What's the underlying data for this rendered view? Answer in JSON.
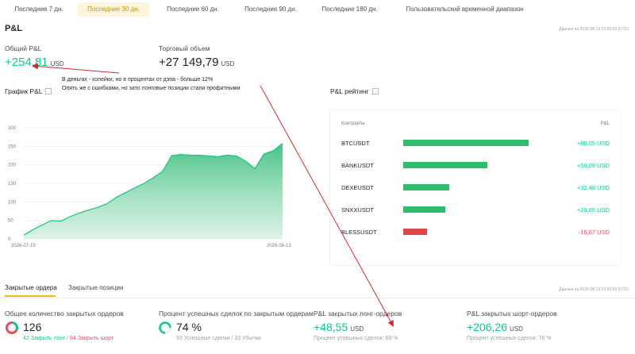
{
  "tabs": [
    {
      "label": "Последние 7 дн."
    },
    {
      "label": "Последние 30 дн."
    },
    {
      "label": "Последние 60 дн."
    },
    {
      "label": "Последние 90 дн."
    },
    {
      "label": "Последние 180 дн."
    },
    {
      "label": "Пользовательский временной диапазон"
    }
  ],
  "pnl": {
    "title": "P&L",
    "timestamp": "Данные на 2026-08-13 23:59:59 (UTC)",
    "total_label": "Общий P&L",
    "total_value": "+254,81",
    "total_unit": "USD",
    "volume_label": "Торговый объем",
    "volume_value": "+27 149,79",
    "volume_unit": "USD"
  },
  "annotation": {
    "line1": "В деньгах - копейки, но в процентах от дэпа - больше 12%",
    "line2": "Опять же с ошибками, но зато лонговые позиции стали профитными"
  },
  "chart_section": {
    "title": "График P&L",
    "chart_data": {
      "type": "area",
      "x_tick_labels": [
        "2026-07-15",
        "2026-08-13"
      ],
      "y_tick_labels": [
        "0",
        "50",
        "100",
        "150",
        "200",
        "250",
        "300"
      ],
      "ylim": [
        0,
        300
      ],
      "grid": true,
      "color": "#0ecb81",
      "values": [
        10,
        25,
        38,
        50,
        48,
        60,
        70,
        78,
        85,
        95,
        112,
        125,
        138,
        150,
        165,
        182,
        225,
        228,
        226,
        226,
        224,
        222,
        226,
        224,
        210,
        190,
        230,
        238,
        258
      ]
    }
  },
  "rating": {
    "title": "P&L рейтинг",
    "col_contract": "Контракты",
    "col_pnl": "P&L",
    "chart_data": {
      "type": "bar",
      "orientation": "horizontal",
      "categories": [
        "BTCUSDT",
        "BANKUSDT",
        "DEXEUSDT",
        "SNXXUSDT",
        "BLESSUSDT"
      ],
      "values": [
        88.05,
        59.09,
        32.48,
        29.66,
        -16.67
      ],
      "labels": [
        "+88,05 USD",
        "+59,09 USD",
        "+32,48 USD",
        "+29,66 USD",
        "-16,67 USD"
      ],
      "max": 88.05
    },
    "colors": {
      "positive": "#2ebd6b",
      "negative": "#e04848"
    }
  },
  "bottom_tabs": [
    {
      "label": "Закрытые ордера"
    },
    {
      "label": "Закрытые позиции"
    }
  ],
  "bottom_timestamp": "Данные на 2026-08-13 23:59:59 (UTC)",
  "stats": {
    "orders_label": "Общее количество закрытых ордеров",
    "orders_value": "126",
    "orders_long": "42 Закрыть лонг",
    "orders_sep": "/",
    "orders_short": "84 Закрыть шорт",
    "orders_long_fraction": 0.333,
    "success_label": "Процент успешных сделок по закрытым ордерам",
    "success_value": "74 %",
    "success_fraction": 0.74,
    "success_sub": "93 Успешные сделки / 33 Убытки",
    "long_label": "P&L закрытых лонг-ордеров",
    "long_value": "+48,55",
    "long_unit": "USD",
    "long_sub": "Процент успешных сделок: 69 %",
    "short_label": "P&L закрытых шорт-ордеров",
    "short_value": "+206,26",
    "short_unit": "USD",
    "short_sub": "Процент успешных сделок: 76 %"
  }
}
